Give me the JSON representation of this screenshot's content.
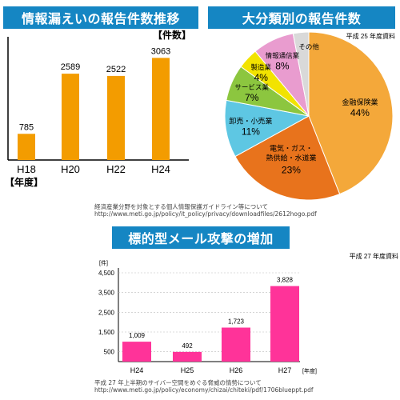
{
  "panels": {
    "leaks_title": "情報漏えいの報告件数推移",
    "category_title": "大分類別の報告件数",
    "attack_title": "標的型メール攻撃の増加"
  },
  "sources": {
    "meti_guideline_line1": "経済産業分野を対象とする個人情報保護ガイドライン等について",
    "meti_guideline_line2": "http://www.meti.go.jp/policy/it_policy/privacy/downloadfiles/2612hogo.pdf",
    "cyber_line1": "平成 27 年上半期のサイバー空間をめぐる脅威の情勢について",
    "cyber_line2": "http://www.meti.go.jp/policy/economy/chizai/chiteki/pdf/1706blueppt.pdf"
  },
  "colors": {
    "banner": "#1586c3",
    "orange_bar": "#f39c00",
    "pink_bar": "#ff3399",
    "pie_finance": "#f4a83a",
    "pie_utilities": "#e8731c",
    "pie_wholesale": "#5ec7e3",
    "pie_service": "#8cc63f",
    "pie_manufacturing": "#f2e300",
    "pie_info": "#e99ccf",
    "pie_other": "#d9d9d9"
  },
  "chart_data": [
    {
      "type": "bar",
      "title": "情報漏えいの報告件数推移",
      "categories": [
        "H18",
        "H20",
        "H22",
        "H24"
      ],
      "values": [
        785,
        2589,
        2522,
        3063
      ],
      "unit_label": "【件数】",
      "xlabel": "【年度】",
      "ylim": [
        0,
        3600
      ],
      "color": "#f39c00"
    },
    {
      "type": "pie",
      "title": "大分類別の報告件数",
      "note": "平成 25 年度資料",
      "slices": [
        {
          "label": "金融保険業",
          "value": 44,
          "text": "44%",
          "color": "#f4a83a"
        },
        {
          "label": "電気・ガス・熱供給・水道業",
          "line1": "電気・ガス・",
          "line2": "熱供給・水道業",
          "value": 23,
          "text": "23%",
          "color": "#e8731c"
        },
        {
          "label": "卸売・小売業",
          "value": 11,
          "text": "11%",
          "color": "#5ec7e3"
        },
        {
          "label": "サービス業",
          "value": 7,
          "text": "7%",
          "color": "#8cc63f"
        },
        {
          "label": "製造業",
          "value": 4,
          "text": "4%",
          "color": "#f2e300"
        },
        {
          "label": "情報通信業",
          "value": 8,
          "text": "8%",
          "color": "#e99ccf"
        },
        {
          "label": "その他",
          "value": 3,
          "text": "",
          "color": "#d9d9d9"
        }
      ]
    },
    {
      "type": "bar",
      "title": "標的型メール攻撃の増加",
      "note": "平成 27 年度資料",
      "categories": [
        "H24",
        "H25",
        "H26",
        "H27"
      ],
      "values": [
        1009,
        492,
        1723,
        3828
      ],
      "value_labels": [
        "1,009",
        "492",
        "1,723",
        "3,828"
      ],
      "unit_label": "[件]",
      "xlabel": "[年度]",
      "yticks": [
        500,
        1500,
        2500,
        3500,
        4500
      ],
      "ytick_labels": [
        "500",
        "1,500",
        "2,500",
        "3,500",
        "4,500"
      ],
      "ylim": [
        0,
        4500
      ],
      "color": "#ff3399"
    }
  ]
}
